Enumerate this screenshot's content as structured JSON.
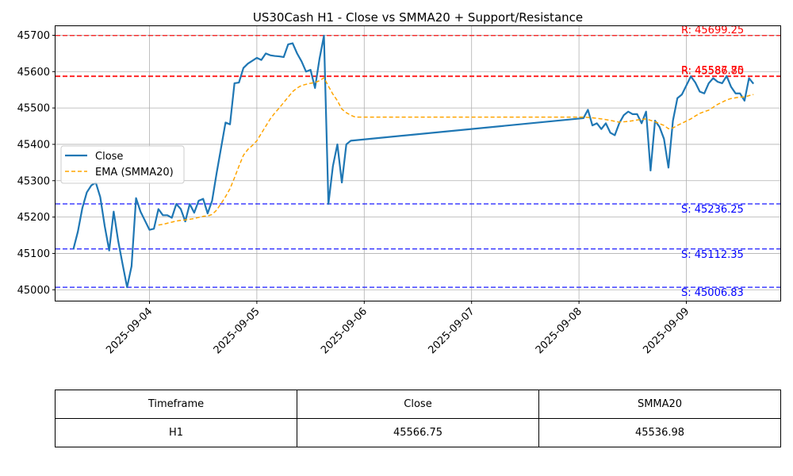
{
  "chart_data": {
    "type": "line",
    "title": "US30Cash H1 - Close vs SMMA20 + Support/Resistance",
    "xlabel": "",
    "ylabel": "",
    "x_tick_labels": [
      "2025-09-04",
      "2025-09-05",
      "2025-09-06",
      "2025-09-07",
      "2025-09-08",
      "2025-09-09"
    ],
    "y_tick_labels": [
      "45000",
      "45100",
      "45200",
      "45300",
      "45400",
      "45500",
      "45600",
      "45700"
    ],
    "xlim": [
      "2025-09-03 03:00",
      "2025-09-09 21:00"
    ],
    "ylim": [
      44970,
      45725
    ],
    "grid": true,
    "legend": {
      "position": "center-left",
      "entries": [
        {
          "label": "Close",
          "color": "#1f77b4",
          "style": "solid"
        },
        {
          "label": "EMA (SMMA20)",
          "color": "#ffa500",
          "style": "dashed"
        }
      ]
    },
    "series": [
      {
        "name": "Close",
        "color": "#1f77b4",
        "points": [
          [
            "2025-09-03 07:00",
            45112
          ],
          [
            "2025-09-03 08:00",
            45160
          ],
          [
            "2025-09-03 09:00",
            45225
          ],
          [
            "2025-09-03 10:00",
            45268
          ],
          [
            "2025-09-03 11:00",
            45287
          ],
          [
            "2025-09-03 12:00",
            45295
          ],
          [
            "2025-09-03 13:00",
            45255
          ],
          [
            "2025-09-03 14:00",
            45175
          ],
          [
            "2025-09-03 15:00",
            45108
          ],
          [
            "2025-09-03 16:00",
            45215
          ],
          [
            "2025-09-03 17:00",
            45135
          ],
          [
            "2025-09-03 18:00",
            45070
          ],
          [
            "2025-09-03 19:00",
            45007
          ],
          [
            "2025-09-03 20:00",
            45065
          ],
          [
            "2025-09-03 21:00",
            45252
          ],
          [
            "2025-09-03 22:00",
            45215
          ],
          [
            "2025-09-03 23:00",
            45190
          ],
          [
            "2025-09-04 00:00",
            45165
          ],
          [
            "2025-09-04 01:00",
            45168
          ],
          [
            "2025-09-04 02:00",
            45222
          ],
          [
            "2025-09-04 03:00",
            45205
          ],
          [
            "2025-09-04 04:00",
            45205
          ],
          [
            "2025-09-04 05:00",
            45198
          ],
          [
            "2025-09-04 06:00",
            45236
          ],
          [
            "2025-09-04 07:00",
            45222
          ],
          [
            "2025-09-04 08:00",
            45188
          ],
          [
            "2025-09-04 09:00",
            45236
          ],
          [
            "2025-09-04 10:00",
            45212
          ],
          [
            "2025-09-04 11:00",
            45245
          ],
          [
            "2025-09-04 12:00",
            45250
          ],
          [
            "2025-09-04 13:00",
            45210
          ],
          [
            "2025-09-04 14:00",
            45245
          ],
          [
            "2025-09-04 15:00",
            45320
          ],
          [
            "2025-09-04 16:00",
            45390
          ],
          [
            "2025-09-04 17:00",
            45460
          ],
          [
            "2025-09-04 18:00",
            45455
          ],
          [
            "2025-09-04 19:00",
            45568
          ],
          [
            "2025-09-04 20:00",
            45570
          ],
          [
            "2025-09-04 21:00",
            45610
          ],
          [
            "2025-09-04 22:00",
            45622
          ],
          [
            "2025-09-04 23:00",
            45630
          ],
          [
            "2025-09-05 00:00",
            45638
          ],
          [
            "2025-09-05 01:00",
            45632
          ],
          [
            "2025-09-05 02:00",
            45650
          ],
          [
            "2025-09-05 03:00",
            45645
          ],
          [
            "2025-09-05 04:00",
            45643
          ],
          [
            "2025-09-05 05:00",
            45642
          ],
          [
            "2025-09-05 06:00",
            45640
          ],
          [
            "2025-09-05 07:00",
            45675
          ],
          [
            "2025-09-05 08:00",
            45678
          ],
          [
            "2025-09-05 09:00",
            45650
          ],
          [
            "2025-09-05 10:00",
            45628
          ],
          [
            "2025-09-05 11:00",
            45600
          ],
          [
            "2025-09-05 12:00",
            45605
          ],
          [
            "2025-09-05 13:00",
            45555
          ],
          [
            "2025-09-05 14:00",
            45635
          ],
          [
            "2025-09-05 15:00",
            45699
          ],
          [
            "2025-09-05 16:00",
            45236
          ],
          [
            "2025-09-05 17:00",
            45340
          ],
          [
            "2025-09-05 18:00",
            45400
          ],
          [
            "2025-09-05 19:00",
            45295
          ],
          [
            "2025-09-05 20:00",
            45400
          ],
          [
            "2025-09-05 21:00",
            45410
          ],
          [
            "2025-09-08 01:00",
            45472
          ],
          [
            "2025-09-08 02:00",
            45495
          ],
          [
            "2025-09-08 03:00",
            45452
          ],
          [
            "2025-09-08 04:00",
            45458
          ],
          [
            "2025-09-08 05:00",
            45442
          ],
          [
            "2025-09-08 06:00",
            45458
          ],
          [
            "2025-09-08 07:00",
            45432
          ],
          [
            "2025-09-08 08:00",
            45425
          ],
          [
            "2025-09-08 09:00",
            45458
          ],
          [
            "2025-09-08 10:00",
            45480
          ],
          [
            "2025-09-08 11:00",
            45490
          ],
          [
            "2025-09-08 12:00",
            45483
          ],
          [
            "2025-09-08 13:00",
            45483
          ],
          [
            "2025-09-08 14:00",
            45458
          ],
          [
            "2025-09-08 15:00",
            45490
          ],
          [
            "2025-09-08 16:00",
            45328
          ],
          [
            "2025-09-08 17:00",
            45465
          ],
          [
            "2025-09-08 18:00",
            45448
          ],
          [
            "2025-09-08 19:00",
            45415
          ],
          [
            "2025-09-08 20:00",
            45336
          ],
          [
            "2025-09-08 21:00",
            45465
          ],
          [
            "2025-09-08 22:00",
            45527
          ],
          [
            "2025-09-08 23:00",
            45537
          ],
          [
            "2025-09-09 00:00",
            45562
          ],
          [
            "2025-09-09 01:00",
            45587
          ],
          [
            "2025-09-09 02:00",
            45570
          ],
          [
            "2025-09-09 03:00",
            45545
          ],
          [
            "2025-09-09 04:00",
            45540
          ],
          [
            "2025-09-09 05:00",
            45568
          ],
          [
            "2025-09-09 06:00",
            45582
          ],
          [
            "2025-09-09 07:00",
            45572
          ],
          [
            "2025-09-09 08:00",
            45568
          ],
          [
            "2025-09-09 09:00",
            45588
          ],
          [
            "2025-09-09 10:00",
            45558
          ],
          [
            "2025-09-09 11:00",
            45540
          ],
          [
            "2025-09-09 12:00",
            45540
          ],
          [
            "2025-09-09 13:00",
            45520
          ],
          [
            "2025-09-09 14:00",
            45582
          ],
          [
            "2025-09-09 15:00",
            45566.75
          ]
        ]
      },
      {
        "name": "EMA (SMMA20)",
        "color": "#ffa500",
        "dash": true,
        "points": [
          [
            "2025-09-04 02:00",
            45178
          ],
          [
            "2025-09-04 03:00",
            45180
          ],
          [
            "2025-09-04 04:00",
            45183
          ],
          [
            "2025-09-04 05:00",
            45186
          ],
          [
            "2025-09-04 06:00",
            45189
          ],
          [
            "2025-09-04 07:00",
            45191
          ],
          [
            "2025-09-04 08:00",
            45192
          ],
          [
            "2025-09-04 09:00",
            45194
          ],
          [
            "2025-09-04 10:00",
            45196
          ],
          [
            "2025-09-04 11:00",
            45199
          ],
          [
            "2025-09-04 12:00",
            45202
          ],
          [
            "2025-09-04 13:00",
            45203
          ],
          [
            "2025-09-04 14:00",
            45207
          ],
          [
            "2025-09-04 15:00",
            45219
          ],
          [
            "2025-09-04 16:00",
            45237
          ],
          [
            "2025-09-04 17:00",
            45256
          ],
          [
            "2025-09-04 18:00",
            45278
          ],
          [
            "2025-09-04 19:00",
            45308
          ],
          [
            "2025-09-04 20:00",
            45340
          ],
          [
            "2025-09-04 21:00",
            45370
          ],
          [
            "2025-09-04 22:00",
            45386
          ],
          [
            "2025-09-04 23:00",
            45397
          ],
          [
            "2025-09-05 00:00",
            45410
          ],
          [
            "2025-09-05 01:00",
            45430
          ],
          [
            "2025-09-05 02:00",
            45450
          ],
          [
            "2025-09-05 03:00",
            45470
          ],
          [
            "2025-09-05 04:00",
            45486
          ],
          [
            "2025-09-05 05:00",
            45500
          ],
          [
            "2025-09-05 06:00",
            45515
          ],
          [
            "2025-09-05 07:00",
            45530
          ],
          [
            "2025-09-05 08:00",
            45545
          ],
          [
            "2025-09-05 09:00",
            45555
          ],
          [
            "2025-09-05 10:00",
            45562
          ],
          [
            "2025-09-05 11:00",
            45565
          ],
          [
            "2025-09-05 12:00",
            45568
          ],
          [
            "2025-09-05 13:00",
            45570
          ],
          [
            "2025-09-05 14:00",
            45575
          ],
          [
            "2025-09-05 15:00",
            45583
          ],
          [
            "2025-09-05 16:00",
            45560
          ],
          [
            "2025-09-05 17:00",
            45538
          ],
          [
            "2025-09-05 18:00",
            45520
          ],
          [
            "2025-09-05 19:00",
            45497
          ],
          [
            "2025-09-05 20:00",
            45487
          ],
          [
            "2025-09-05 21:00",
            45480
          ],
          [
            "2025-09-05 22:00",
            45475
          ],
          [
            "2025-09-08 01:00",
            45475
          ],
          [
            "2025-09-08 03:00",
            45473
          ],
          [
            "2025-09-08 05:00",
            45470
          ],
          [
            "2025-09-08 07:00",
            45466
          ],
          [
            "2025-09-08 09:00",
            45461
          ],
          [
            "2025-09-08 11:00",
            45463
          ],
          [
            "2025-09-08 13:00",
            45467
          ],
          [
            "2025-09-08 15:00",
            45470
          ],
          [
            "2025-09-08 17:00",
            45462
          ],
          [
            "2025-09-08 19:00",
            45452
          ],
          [
            "2025-09-08 20:00",
            45443
          ],
          [
            "2025-09-08 21:00",
            45445
          ],
          [
            "2025-09-08 22:00",
            45452
          ],
          [
            "2025-09-08 23:00",
            45458
          ],
          [
            "2025-09-09 00:00",
            45464
          ],
          [
            "2025-09-09 01:00",
            45470
          ],
          [
            "2025-09-09 02:00",
            45478
          ],
          [
            "2025-09-09 03:00",
            45485
          ],
          [
            "2025-09-09 04:00",
            45490
          ],
          [
            "2025-09-09 05:00",
            45494
          ],
          [
            "2025-09-09 06:00",
            45502
          ],
          [
            "2025-09-09 07:00",
            45510
          ],
          [
            "2025-09-09 08:00",
            45516
          ],
          [
            "2025-09-09 09:00",
            45522
          ],
          [
            "2025-09-09 10:00",
            45526
          ],
          [
            "2025-09-09 11:00",
            45528
          ],
          [
            "2025-09-09 12:00",
            45530
          ],
          [
            "2025-09-09 13:00",
            45530
          ],
          [
            "2025-09-09 14:00",
            45534
          ],
          [
            "2025-09-09 15:00",
            45536.98
          ]
        ]
      }
    ],
    "levels": [
      {
        "kind": "resistance",
        "value": 45699.25,
        "label": "R: 45699.25",
        "color": "#ff0000"
      },
      {
        "kind": "resistance",
        "value": 45587.75,
        "label": "R: 45587.75",
        "color": "#ff0000"
      },
      {
        "kind": "resistance",
        "value": 45586.8,
        "label": "R: 45586.80",
        "color": "#ff0000"
      },
      {
        "kind": "support",
        "value": 45236.25,
        "label": "S: 45236.25",
        "color": "#0000ff"
      },
      {
        "kind": "support",
        "value": 45112.35,
        "label": "S: 45112.35",
        "color": "#0000ff"
      },
      {
        "kind": "support",
        "value": 45006.83,
        "label": "S: 45006.83",
        "color": "#0000ff"
      }
    ]
  },
  "table": {
    "headers": [
      "Timeframe",
      "Close",
      "SMMA20"
    ],
    "rows": [
      [
        "H1",
        "45566.75",
        "45536.98"
      ]
    ]
  }
}
